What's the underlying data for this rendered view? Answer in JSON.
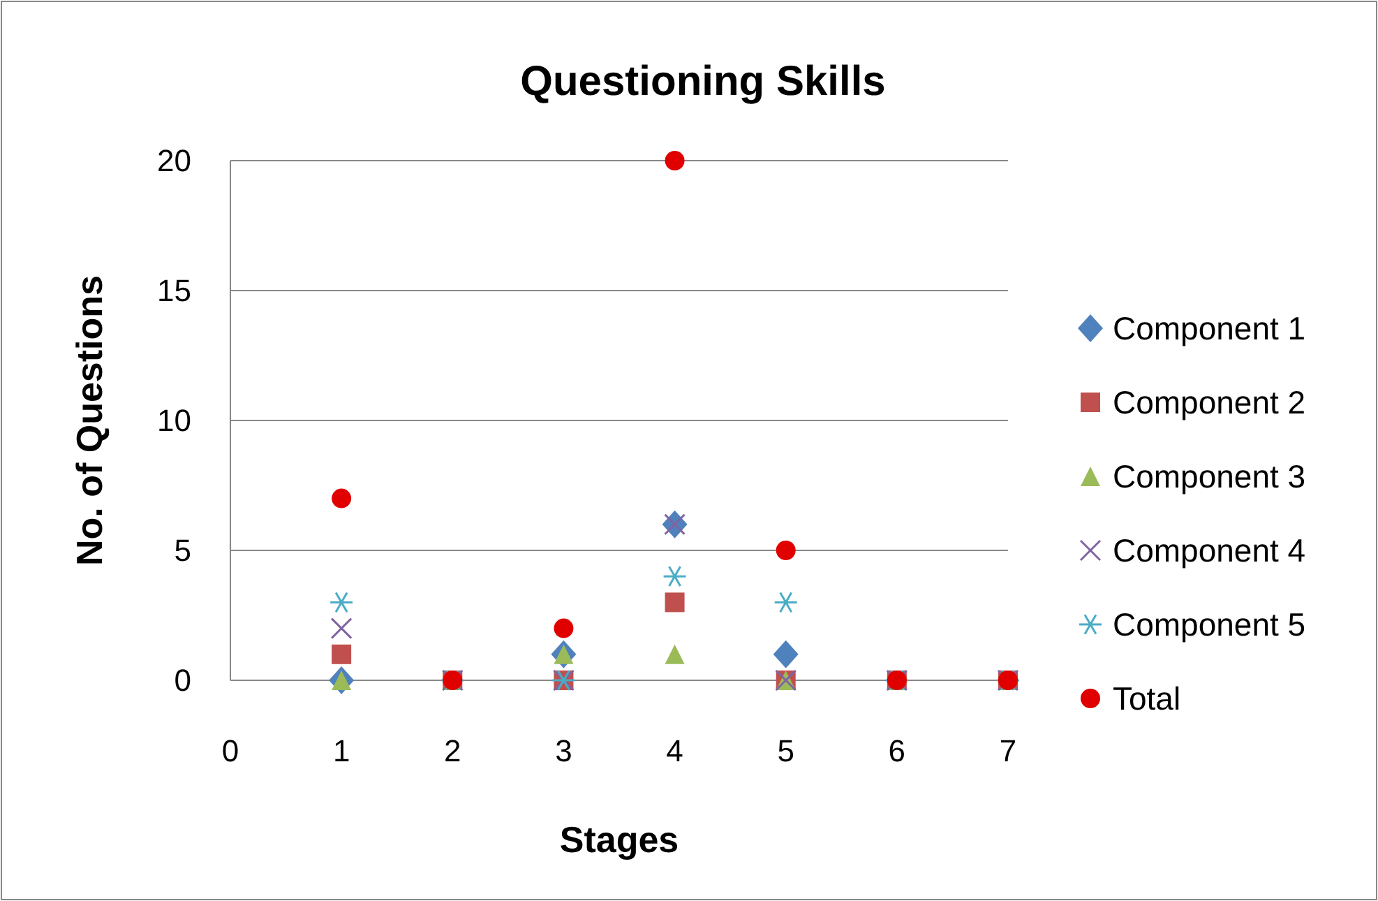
{
  "chart_data": {
    "type": "scatter",
    "title": "Questioning Skills",
    "xlabel": "Stages",
    "ylabel": "No. of Questions",
    "x": [
      1,
      2,
      3,
      4,
      5,
      6,
      7
    ],
    "xlim": [
      0,
      7
    ],
    "xticks": [
      0,
      1,
      2,
      3,
      4,
      5,
      6,
      7
    ],
    "ylim": [
      0,
      20
    ],
    "yticks": [
      0,
      5,
      10,
      15,
      20
    ],
    "grid": "y",
    "legend": "right",
    "series": [
      {
        "name": "Component 1",
        "color": "#4f81bd",
        "marker": "diamond",
        "values": [
          0,
          null,
          1,
          6,
          1,
          null,
          null
        ]
      },
      {
        "name": "Component 2",
        "color": "#c0504d",
        "marker": "square",
        "values": [
          1,
          0,
          0,
          3,
          0,
          0,
          0
        ]
      },
      {
        "name": "Component 3",
        "color": "#9bbb59",
        "marker": "triangle",
        "values": [
          0,
          0,
          1,
          1,
          0,
          0,
          0
        ]
      },
      {
        "name": "Component 4",
        "color": "#8064a2",
        "marker": "cross",
        "values": [
          2,
          0,
          0,
          6,
          0,
          0,
          0
        ]
      },
      {
        "name": "Component 5",
        "color": "#4bacc6",
        "values": [
          3,
          0,
          0,
          4,
          3,
          0,
          0
        ]
      },
      {
        "name": "Total",
        "color": "#e00000",
        "marker": "circle",
        "values": [
          7,
          0,
          2,
          20,
          5,
          0,
          0
        ]
      }
    ]
  }
}
